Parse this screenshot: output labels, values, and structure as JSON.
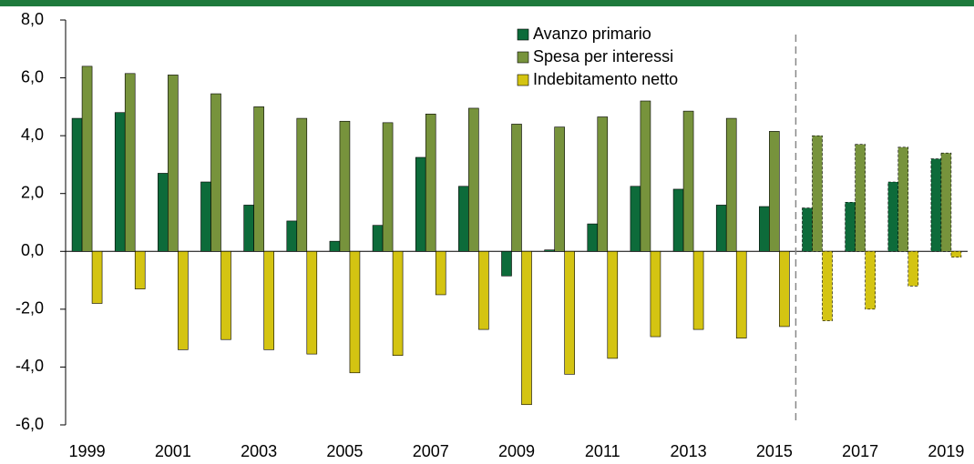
{
  "chart_data": {
    "type": "bar",
    "categories": [
      "1999",
      null,
      "2001",
      null,
      "2003",
      null,
      "2005",
      null,
      "2007",
      null,
      "2009",
      null,
      "2011",
      null,
      "2013",
      null,
      "2015",
      null,
      "2017",
      null,
      "2019"
    ],
    "series": [
      {
        "name": "Avanzo primario",
        "color": "#0d6b3a",
        "values": [
          4.6,
          4.8,
          2.7,
          2.4,
          1.6,
          1.05,
          0.35,
          0.9,
          3.25,
          2.25,
          -0.85,
          0.05,
          0.95,
          2.25,
          2.15,
          1.6,
          1.55,
          1.5,
          1.7,
          2.4,
          3.2
        ]
      },
      {
        "name": "Spesa per interessi",
        "color": "#77933c",
        "values": [
          6.4,
          6.15,
          6.1,
          5.45,
          5.0,
          4.6,
          4.5,
          4.45,
          4.75,
          4.95,
          4.4,
          4.3,
          4.65,
          5.2,
          4.85,
          4.6,
          4.15,
          4.0,
          3.7,
          3.6,
          3.4
        ]
      },
      {
        "name": "Indebitamento netto",
        "color": "#d4c412",
        "values": [
          -1.8,
          -1.3,
          -3.4,
          -3.05,
          -3.4,
          -3.55,
          -4.2,
          -3.6,
          -1.5,
          -2.7,
          -5.3,
          -4.25,
          -3.7,
          -2.95,
          -2.7,
          -3.0,
          -2.6,
          -2.4,
          -2.0,
          -1.2,
          -0.2
        ]
      }
    ],
    "ylim": [
      -6,
      8
    ],
    "yticks": [
      {
        "value": -6,
        "label": "-6,0"
      },
      {
        "value": -4,
        "label": "-4,0"
      },
      {
        "value": -2,
        "label": "-2,0"
      },
      {
        "value": 0,
        "label": "0,0"
      },
      {
        "value": 2,
        "label": "2,0"
      },
      {
        "value": 4,
        "label": "4,0"
      },
      {
        "value": 6,
        "label": "6,0"
      },
      {
        "value": 8,
        "label": "8,0"
      }
    ],
    "grid": false,
    "legend": "top"
  }
}
